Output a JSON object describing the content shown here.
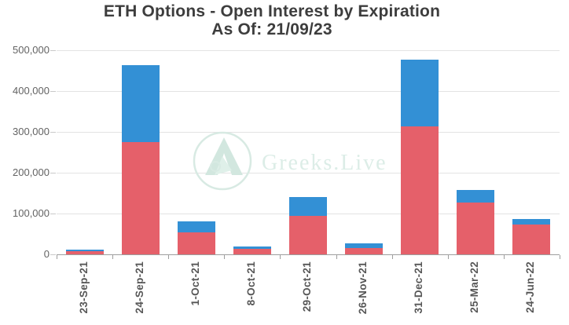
{
  "header": {
    "title": "ETH Options - Open Interest by Expiration",
    "subtitle": "As Of: 21/09/23"
  },
  "watermark": {
    "text": "Greeks.Live"
  },
  "colors": {
    "red_series": "#e5606a",
    "blue_series": "#3390d5",
    "gridline": "#e3e3e3",
    "axis": "#9e9e9e",
    "title_text": "#3d3d3d",
    "tick_label": "#575757",
    "watermark": "#d8eae3"
  },
  "chart_data": {
    "type": "bar",
    "stacked": true,
    "title": "ETH Options - Open Interest by Expiration",
    "subtitle": "As Of: 21/09/23",
    "xlabel": "",
    "ylabel": "",
    "categories": [
      "23-Sep-21",
      "24-Sep-21",
      "1-Oct-21",
      "8-Oct-21",
      "29-Oct-21",
      "26-Nov-21",
      "31-Dec-21",
      "25-Mar-22",
      "24-Jun-22"
    ],
    "series": [
      {
        "name": "red-bottom-segment",
        "color": "#e5606a",
        "values": [
          7000,
          275000,
          53000,
          14000,
          95000,
          15000,
          314000,
          127000,
          73000
        ]
      },
      {
        "name": "blue-top-segment",
        "color": "#3390d5",
        "values": [
          4000,
          188000,
          27000,
          5000,
          45000,
          11000,
          163000,
          30000,
          13000
        ]
      }
    ],
    "totals": [
      11000,
      463000,
      80000,
      19000,
      140000,
      26000,
      477000,
      157000,
      86000
    ],
    "ylim": [
      0,
      500000
    ],
    "y_tick_labels": [
      "500,000",
      "400,000",
      "300,000",
      "200,000",
      "100,000",
      "0"
    ],
    "y_tick_values": [
      500000,
      400000,
      300000,
      200000,
      100000,
      0
    ],
    "grid": true,
    "legend": "none",
    "x_label_rotation": -90
  }
}
